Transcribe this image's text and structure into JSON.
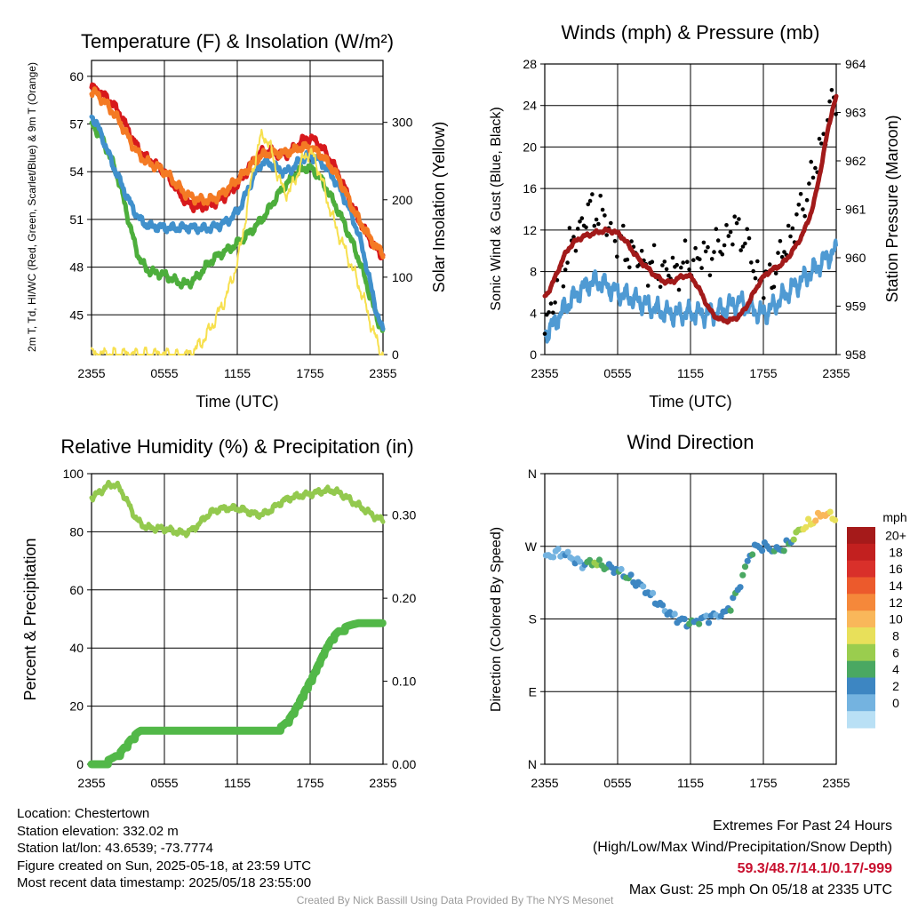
{
  "colors": {
    "temp": "#d7191c",
    "dewpoint": "#4dae3c",
    "hiwc": "#4090cc",
    "temp9m": "#f47a24",
    "insolation": "#f7e04f",
    "wind": "#4f9ad3",
    "gust": "#000000",
    "pressure": "#a21a1a",
    "rh": "#93c94e",
    "precip": "#52b848",
    "extremes": "#c8102e",
    "credit": "#9a9a9a"
  },
  "time_ticks": [
    "2355",
    "0555",
    "1155",
    "1755",
    "2355"
  ],
  "footer": {
    "location": "Location: Chestertown",
    "elevation": "Station elevation: 332.02 m",
    "latlon": "Station lat/lon: 43.6539; -73.7774",
    "created": "Figure created on Sun, 2025-05-18, at 23:59 UTC",
    "recent": "Most recent data timestamp: 2025/05/18 23:55:00",
    "extremes_title": "Extremes For Past 24 Hours",
    "extremes_desc": "(High/Low/Max Wind/Precipitation/Snow Depth)",
    "extremes_values": "59.3/48.7/14.1/0.17/-999",
    "max_gust": "Max Gust: 25 mph On 05/18 at 2335 UTC",
    "credit": "Created By Nick Bassill Using Data Provided By The NYS Mesonet"
  },
  "chart_data": [
    {
      "type": "line",
      "title": "Temperature (F) & Insolation (W/m²)",
      "xlabel": "Time (UTC)",
      "ylabel": "2m T, Td, HI/WC (Red, Green, Scarlet/Blue) & 9m T (Orange)",
      "ylabel_right": "Solar Insolation (Yellow)",
      "x": [
        0,
        2,
        4,
        6,
        8,
        10,
        12,
        14,
        16,
        18,
        20,
        22,
        24
      ],
      "ylim": [
        42.5,
        61
      ],
      "ylim_right": [
        0,
        380
      ],
      "yticks": [
        45,
        48,
        51,
        54,
        57,
        60
      ],
      "yticks_right": [
        0,
        100,
        200,
        300
      ],
      "series": [
        {
          "name": "2m T",
          "values": [
            59.3,
            58,
            55.3,
            54,
            52,
            52,
            53.2,
            55.2,
            55.1,
            56.1,
            54.3,
            51,
            48.7
          ]
        },
        {
          "name": "Td",
          "values": [
            57,
            54,
            48.5,
            47.5,
            47,
            48.5,
            49.5,
            51,
            53.2,
            54.2,
            52,
            48.5,
            44
          ]
        },
        {
          "name": "HI/WC",
          "values": [
            57.5,
            54,
            51,
            50.5,
            50.5,
            50.5,
            51.5,
            54.5,
            54,
            55,
            53.5,
            50,
            44
          ]
        },
        {
          "name": "9m T",
          "values": [
            59.1,
            57.5,
            55,
            54,
            52.5,
            52.3,
            53.5,
            55,
            55.2,
            55.5,
            54,
            51,
            48.9
          ]
        },
        {
          "name": "Insolation",
          "axis": "right",
          "values": [
            0,
            0,
            0,
            0,
            0,
            40,
            120,
            280,
            210,
            260,
            170,
            90,
            0
          ]
        }
      ]
    },
    {
      "type": "line",
      "title": "Winds (mph) & Pressure (mb)",
      "xlabel": "Time (UTC)",
      "ylabel": "Sonic Wind & Gust (Blue, Black)",
      "ylabel_right": "Station Pressure (Maroon)",
      "x": [
        0,
        2,
        4,
        6,
        8,
        10,
        12,
        14,
        16,
        18,
        20,
        22,
        24
      ],
      "ylim": [
        0,
        28
      ],
      "ylim_right": [
        958,
        964
      ],
      "yticks": [
        0,
        4,
        8,
        12,
        16,
        20,
        24,
        28
      ],
      "yticks_right": [
        958,
        959,
        960,
        961,
        962,
        963,
        964
      ],
      "series": [
        {
          "name": "Sonic Wind",
          "values": [
            2,
            5,
            7,
            6,
            5,
            4,
            4,
            4,
            5,
            4,
            6,
            8,
            10
          ]
        },
        {
          "name": "Gust",
          "values": [
            3,
            10,
            14,
            11,
            9,
            8,
            9,
            10,
            12,
            7,
            11,
            17,
            25
          ]
        },
        {
          "name": "Station Pressure",
          "axis": "right",
          "values": [
            959.2,
            960.2,
            960.5,
            960.5,
            959.9,
            959.5,
            959.6,
            958.8,
            958.8,
            959.6,
            960,
            961,
            963.3
          ]
        }
      ]
    },
    {
      "type": "line",
      "title": "Relative Humidity (%) & Precipitation (in)",
      "ylabel": "Percent & Precipitation",
      "x": [
        0,
        2,
        4,
        6,
        8,
        10,
        12,
        14,
        16,
        18,
        20,
        22,
        24
      ],
      "ylim": [
        0,
        100
      ],
      "ylim_right": [
        0,
        0.35
      ],
      "yticks": [
        0,
        20,
        40,
        60,
        80,
        100
      ],
      "yticks_right": [
        0,
        0.1,
        0.2,
        0.3
      ],
      "yticklabels_right": [
        "0.00",
        "0.10",
        "0.20",
        "0.30"
      ],
      "series": [
        {
          "name": "RH",
          "values": [
            92,
            96,
            83,
            81,
            80,
            87,
            88,
            86,
            91,
            93,
            94,
            89,
            84
          ]
        },
        {
          "name": "Precip",
          "axis": "right",
          "values": [
            0,
            0.01,
            0.04,
            0.04,
            0.04,
            0.04,
            0.04,
            0.04,
            0.05,
            0.1,
            0.155,
            0.17,
            0.17
          ]
        }
      ]
    },
    {
      "type": "scatter",
      "title": "Wind Direction",
      "ylabel": "Direction (Colored By Speed)",
      "yticklabels": [
        "N",
        "E",
        "S",
        "W",
        "N"
      ],
      "ylim": [
        0,
        360
      ],
      "x": [
        0,
        1,
        2,
        3,
        4,
        5,
        6,
        7,
        8,
        9,
        10,
        11,
        12,
        13,
        14,
        15,
        16,
        17,
        18,
        19,
        20,
        21,
        22,
        23,
        24
      ],
      "direction": [
        255,
        262,
        258,
        248,
        250,
        245,
        240,
        230,
        220,
        205,
        190,
        180,
        175,
        180,
        184,
        190,
        220,
        262,
        270,
        265,
        272,
        290,
        300,
        310,
        305
      ],
      "speed": [
        3,
        3,
        4,
        4,
        8,
        6,
        5,
        6,
        4,
        5,
        5,
        5,
        6,
        5,
        4,
        5,
        6,
        6,
        5,
        6,
        6,
        9,
        12,
        13,
        11
      ],
      "colorbar": {
        "label": "mph",
        "ticks": [
          "20+",
          "18",
          "16",
          "14",
          "12",
          "10",
          "8",
          "6",
          "4",
          "2",
          "0"
        ],
        "colors": [
          "#a51a1a",
          "#c2201f",
          "#d9302a",
          "#ec5a2c",
          "#f5883a",
          "#f9b75a",
          "#e8e05a",
          "#9acd4e",
          "#4aa862",
          "#3d86c2",
          "#74b3e0",
          "#b9e0f5"
        ]
      }
    }
  ]
}
